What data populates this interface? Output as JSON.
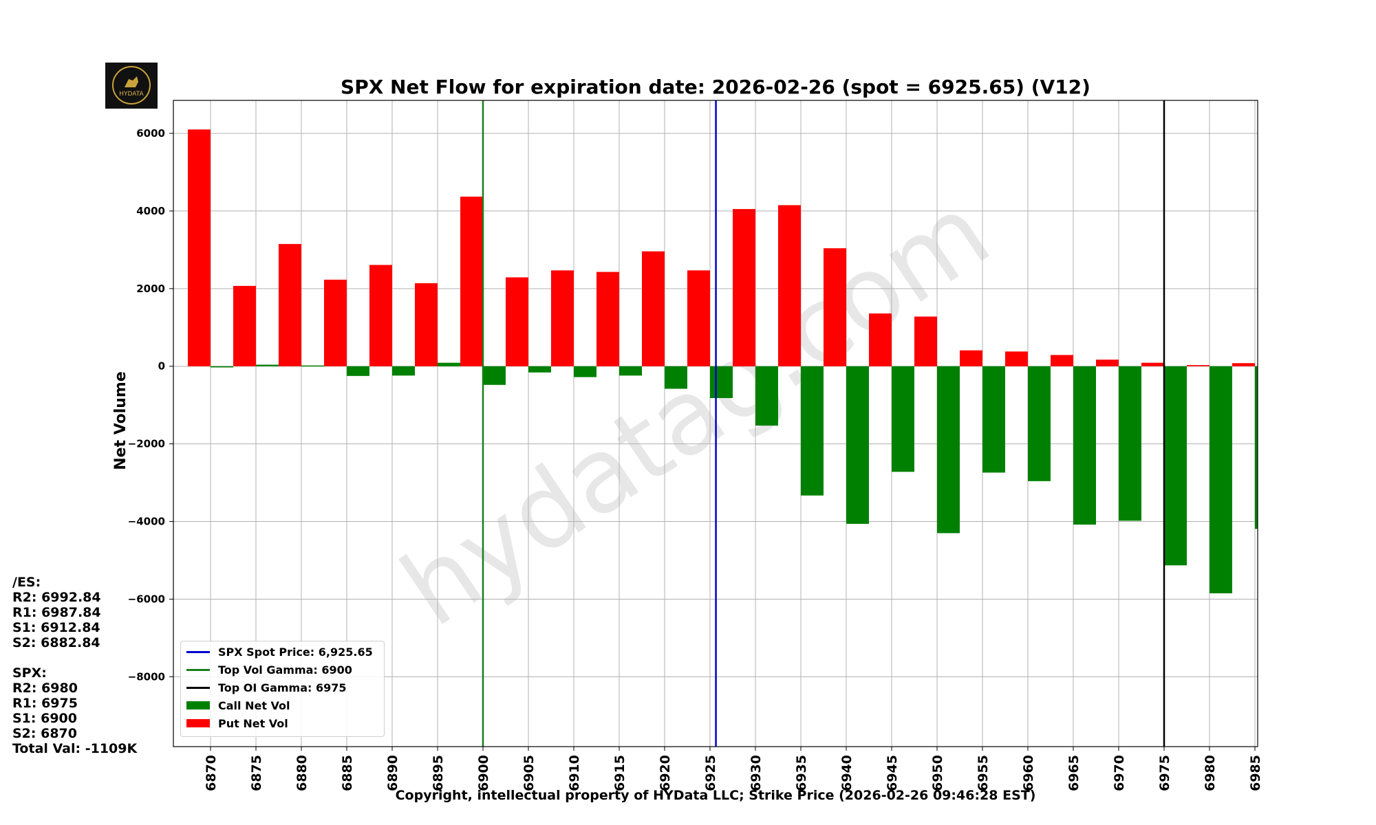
{
  "title": "SPX Net Flow for expiration date: 2026-02-26 (spot = 6925.65) (V12)",
  "footer": "Copyright, intellectual property of HYData LLC; Strike Price (2026-02-26 09:46:28 EST)",
  "watermark": "hydatag.com",
  "logo_text": "HYDATA",
  "es_levels": {
    "header": "/ES:",
    "r2": "R2: 6992.84",
    "r1": "R1: 6987.84",
    "s1": "S1: 6912.84",
    "s2": "S2: 6882.84"
  },
  "spx_levels": {
    "header": "SPX:",
    "r2": "R2: 6980",
    "r1": "R1: 6975",
    "s1": "S1: 6900",
    "s2": "S2: 6870",
    "total": "Total Val: -1109K"
  },
  "legend": {
    "spot": "SPX Spot Price: 6,925.65",
    "vol_gamma": "Top Vol Gamma: 6900",
    "oi_gamma": "Top OI Gamma: 6975",
    "call": "Call Net Vol",
    "put": "Put Net Vol"
  },
  "colors": {
    "put": "#ff0000",
    "call": "#008000",
    "spot_line": "#0000cc",
    "vol_gamma_line": "#1a7f1a",
    "oi_gamma_line": "#000000"
  },
  "chart_data": {
    "type": "bar",
    "ylabel": "Net Volume",
    "xlabel": "Strike Price",
    "ylim": [
      -9800,
      6850
    ],
    "yticks": [
      6000,
      4000,
      2000,
      0,
      -2000,
      -4000,
      -6000,
      -8000
    ],
    "grid": true,
    "legend_position": "lower-left",
    "categories": [
      "6870",
      "6875",
      "6880",
      "6885",
      "6890",
      "6895",
      "6900",
      "6905",
      "6910",
      "6915",
      "6920",
      "6925",
      "6930",
      "6935",
      "6940",
      "6945",
      "6950",
      "6955",
      "6960",
      "6965",
      "6970",
      "6975",
      "6980",
      "6985"
    ],
    "series": [
      {
        "name": "Put Net Vol",
        "values": [
          6100,
          2070,
          3150,
          2230,
          2610,
          2140,
          4370,
          2290,
          2470,
          2430,
          2960,
          2470,
          4050,
          4150,
          3040,
          1360,
          1280,
          410,
          380,
          290,
          170,
          90,
          30,
          80
        ]
      },
      {
        "name": "Call Net Vol",
        "values": [
          -30,
          40,
          20,
          -250,
          -240,
          90,
          -480,
          -160,
          -280,
          -240,
          -580,
          -820,
          -1530,
          -3330,
          -4060,
          -2720,
          -4300,
          -2740,
          -2960,
          -4080,
          -3980,
          -5130,
          -5850,
          -4190
        ]
      }
    ],
    "vertical_lines": [
      {
        "name": "SPX Spot Price",
        "x": 6925.65
      },
      {
        "name": "Top Vol Gamma",
        "x": 6900
      },
      {
        "name": "Top OI Gamma",
        "x": 6975
      }
    ]
  }
}
